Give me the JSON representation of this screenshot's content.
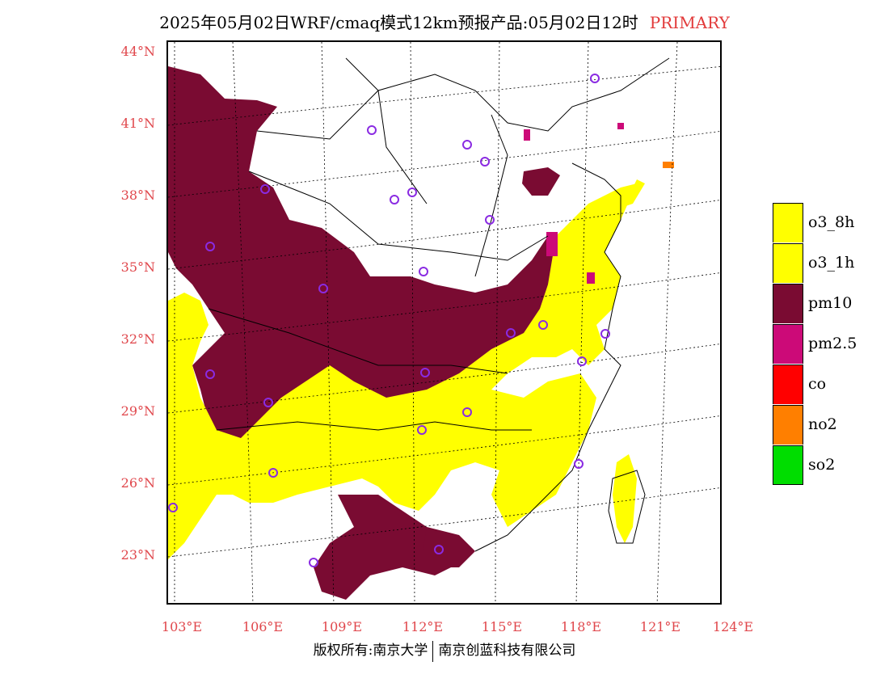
{
  "title": {
    "main": "2025年05月02日WRF/cmaq模式12km预报产品:05月02日12时",
    "tag": "PRIMARY"
  },
  "map": {
    "lat_labels": [
      "44°N",
      "41°N",
      "38°N",
      "35°N",
      "32°N",
      "29°N",
      "26°N",
      "23°N"
    ],
    "lon_labels": [
      "103°E",
      "106°E",
      "109°E",
      "112°E",
      "115°E",
      "118°E",
      "121°E",
      "124°E"
    ],
    "pollutant_regions": {
      "pm10": "northwest, central basin and south",
      "o3": "southern and eastern China",
      "pm2.5": "scattered north and east coast",
      "no2": "small spot northeast coast"
    }
  },
  "legend": [
    {
      "label": "o3_8h",
      "color": "#ffff00"
    },
    {
      "label": "o3_1h",
      "color": "#ffff00"
    },
    {
      "label": "pm10",
      "color": "#7a0b32"
    },
    {
      "label": "pm2.5",
      "color": "#cc0a78"
    },
    {
      "label": "co",
      "color": "#ff0000"
    },
    {
      "label": "no2",
      "color": "#ff7f00"
    },
    {
      "label": "so2",
      "color": "#00dd00"
    }
  ],
  "colors": {
    "pm10": "#7a0b32",
    "o3": "#ffff00",
    "pm25": "#cc0a78",
    "no2": "#ff7f00",
    "label_red": "#e0474c",
    "station": "#8a2be2"
  },
  "footer": {
    "left": "版权所有:南京大学",
    "right": "南京创蓝科技有限公司"
  }
}
